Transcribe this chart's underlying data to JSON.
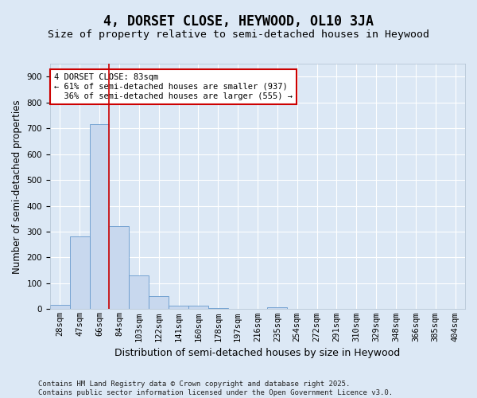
{
  "title": "4, DORSET CLOSE, HEYWOOD, OL10 3JA",
  "subtitle": "Size of property relative to semi-detached houses in Heywood",
  "xlabel": "Distribution of semi-detached houses by size in Heywood",
  "ylabel": "Number of semi-detached properties",
  "bar_values": [
    18,
    283,
    716,
    323,
    130,
    52,
    15,
    12,
    5,
    0,
    0,
    8,
    0,
    0,
    0,
    0,
    0,
    0,
    0,
    0,
    0
  ],
  "categories": [
    "28sqm",
    "47sqm",
    "66sqm",
    "84sqm",
    "103sqm",
    "122sqm",
    "141sqm",
    "160sqm",
    "178sqm",
    "197sqm",
    "216sqm",
    "235sqm",
    "254sqm",
    "272sqm",
    "291sqm",
    "310sqm",
    "329sqm",
    "348sqm",
    "366sqm",
    "385sqm",
    "404sqm"
  ],
  "bar_color": "#c8d8ee",
  "bar_edge_color": "#6699cc",
  "bar_width": 1.0,
  "vline_color": "#cc0000",
  "vline_x_index": 2.5,
  "annotation_text": "4 DORSET CLOSE: 83sqm\n← 61% of semi-detached houses are smaller (937)\n  36% of semi-detached houses are larger (555) →",
  "annotation_box_facecolor": "#ffffff",
  "annotation_box_edgecolor": "#cc0000",
  "ylim": [
    0,
    950
  ],
  "yticks": [
    0,
    100,
    200,
    300,
    400,
    500,
    600,
    700,
    800,
    900
  ],
  "background_color": "#dce8f5",
  "grid_color": "#ffffff",
  "footer": "Contains HM Land Registry data © Crown copyright and database right 2025.\nContains public sector information licensed under the Open Government Licence v3.0.",
  "title_fontsize": 12,
  "subtitle_fontsize": 9.5,
  "xlabel_fontsize": 9,
  "ylabel_fontsize": 8.5,
  "tick_fontsize": 7.5,
  "annotation_fontsize": 7.5,
  "footer_fontsize": 6.5
}
